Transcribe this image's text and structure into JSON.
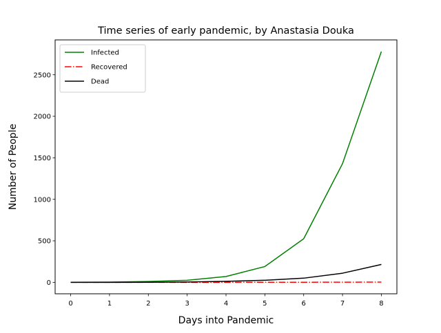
{
  "chart_data": {
    "type": "line",
    "title": "Time series of early pandemic, by Anastasia Douka",
    "xlabel": "Days into Pandemic",
    "ylabel": "Number of People",
    "x": [
      0,
      1,
      2,
      3,
      4,
      5,
      6,
      7,
      8
    ],
    "xlim": [
      -0.4,
      8.4
    ],
    "ylim": [
      -138,
      2920
    ],
    "x_ticks": [
      0,
      1,
      2,
      3,
      4,
      5,
      6,
      7,
      8
    ],
    "y_ticks": [
      0,
      500,
      1000,
      1500,
      2000,
      2500
    ],
    "grid": false,
    "legend_position": "top-left",
    "series": [
      {
        "name": "Infected",
        "color": "#008000",
        "line_style": "solid",
        "values": [
          1,
          3,
          10,
          25,
          70,
          190,
          525,
          1430,
          2780
        ]
      },
      {
        "name": "Recovered",
        "color": "#ff0000",
        "line_style": "dashdot",
        "values": [
          0,
          0,
          0,
          0,
          0,
          1,
          1,
          2,
          3
        ]
      },
      {
        "name": "Dead",
        "color": "#000000",
        "line_style": "solid",
        "values": [
          0,
          0,
          1,
          4,
          12,
          25,
          50,
          110,
          215
        ]
      }
    ]
  }
}
